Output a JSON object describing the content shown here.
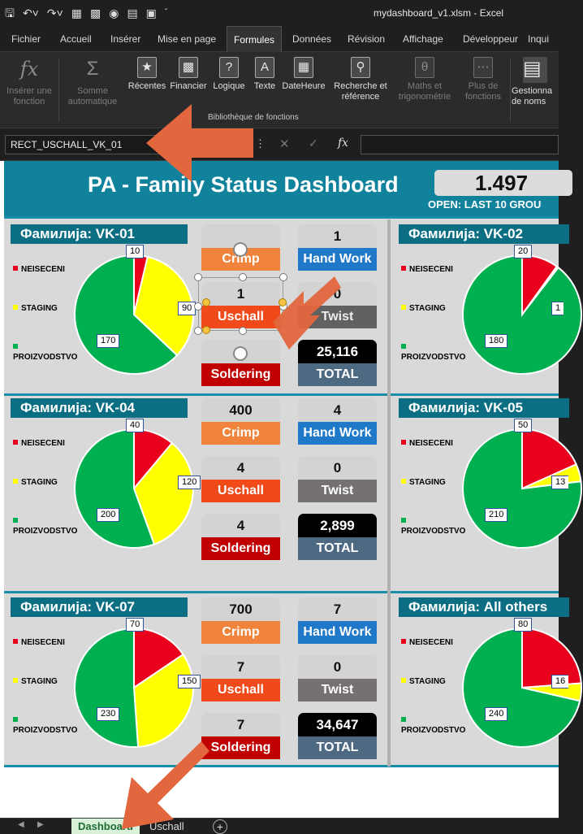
{
  "window": {
    "title": "mydashboard_v1.xlsm  -  Excel",
    "qat_icons": [
      "save-icon",
      "undo-icon",
      "redo-icon",
      "macro-icon",
      "table-icon",
      "camera-icon",
      "chart-icon",
      "shape-icon"
    ]
  },
  "ribbon_tabs": [
    "Fichier",
    "Accueil",
    "Insérer",
    "Mise en page",
    "Formules",
    "Données",
    "Révision",
    "Affichage",
    "Développeur",
    "Inqui"
  ],
  "active_tab": "Formules",
  "ribbon": {
    "insert_function": "Insérer une fonction",
    "autosum": "Somme automatique",
    "recent": "Récentes",
    "financial": "Financier",
    "logical": "Logique",
    "text": "Texte",
    "datetime": "DateHeure",
    "lookup": "Recherche et référence",
    "math": "Maths et trigonométrie",
    "more": "Plus de fonctions",
    "name_manager": "Gestionna de noms",
    "group_label": "Bibliothèque de fonctions"
  },
  "formula_bar": {
    "name_box": "RECT_USCHALL_VK_01",
    "fx": "fx",
    "value": ""
  },
  "dashboard": {
    "title": "PA - Family Status Dashboard",
    "open_value": "1.497",
    "open_label": "OPEN: LAST 10 GROU",
    "legend": {
      "neseceni": "NEISECENI",
      "staging": "STAGING",
      "proizvodstvo": "PROIZVODSTVO"
    },
    "colors": {
      "red": "#e8001c",
      "yellow": "#ffff00",
      "green": "#00b050",
      "crimp": "#f0843c",
      "uschall": "#f04a1a",
      "soldering": "#c00000",
      "handwork": "#1f78c8",
      "twist": "#767171",
      "total": "#4e6a82",
      "header": "#11829b",
      "family": "#0b6e82"
    },
    "families": [
      {
        "label": "Фамилија:  VK-01",
        "neseceni": 10,
        "staging": 90,
        "proizvodstvo": 170,
        "crimp": "",
        "uschall": "1",
        "soldering": "",
        "hand_work": "1",
        "twist": "0",
        "total": "25,116"
      },
      {
        "label": "Фамилија:  VK-02",
        "neseceni": 20,
        "staging": "1",
        "proizvodstvo": 180
      },
      {
        "label": "Фамилија:  VK-04",
        "neseceni": 40,
        "staging": 120,
        "proizvodstvo": 200,
        "crimp": "400",
        "uschall": "4",
        "soldering": "4",
        "hand_work": "4",
        "twist": "0",
        "total": "2,899"
      },
      {
        "label": "Фамилија:  VK-05",
        "neseceni": 50,
        "staging": "13",
        "proizvodstvo": 210
      },
      {
        "label": "Фамилија:  VK-07",
        "neseceni": 70,
        "staging": 150,
        "proizvodstvo": 230,
        "crimp": "700",
        "uschall": "7",
        "soldering": "7",
        "hand_work": "7",
        "twist": "0",
        "total": "34,647"
      },
      {
        "label": "Фамилија:  All others",
        "neseceni": 80,
        "staging": "16",
        "proizvodstvo": 240
      }
    ],
    "kpi_labels": {
      "crimp": "Crimp",
      "uschall": "Uschall",
      "soldering": "Soldering",
      "hand_work": "Hand Work",
      "twist": "Twist",
      "total": "TOTAL"
    }
  },
  "sheet_tabs": [
    "Dashboard",
    "Uschall"
  ],
  "active_sheet": "Dashboard",
  "arrow_color": "#e2663e"
}
